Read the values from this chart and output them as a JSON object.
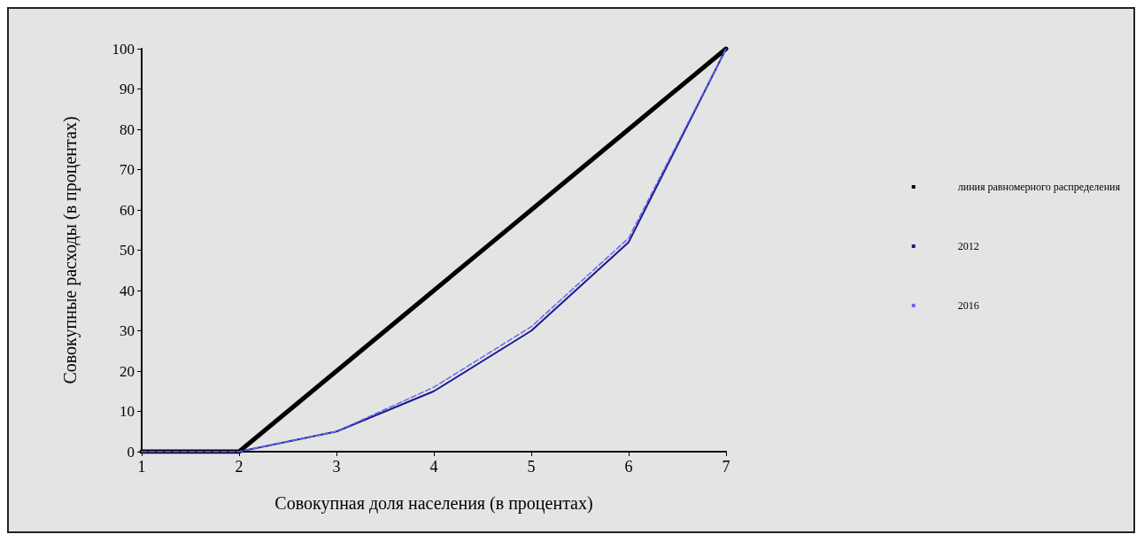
{
  "chart_data": {
    "type": "line",
    "xlabel": "Совокупная доля населения (в процентах)",
    "ylabel": "Совокупные расходы (в процентах)",
    "categories": [
      "1",
      "2",
      "3",
      "4",
      "5",
      "6",
      "7"
    ],
    "series": [
      {
        "name": "линия равномерного распределения",
        "color": "#000000",
        "values": [
          0,
          0,
          20,
          40,
          60,
          80,
          100
        ]
      },
      {
        "name": "2012",
        "color": "#1a1a8c",
        "values": [
          0,
          0,
          5,
          15,
          30,
          52,
          100
        ]
      },
      {
        "name": "2016",
        "color": "#6666ee",
        "line_style": "dashed",
        "values": [
          0,
          0,
          5,
          16,
          31,
          53,
          100
        ]
      }
    ],
    "ylim": [
      0,
      100
    ],
    "yticks": [
      0,
      10,
      20,
      30,
      40,
      50,
      60,
      70,
      80,
      90,
      100
    ],
    "grid": false,
    "legend": "right",
    "marker": "none"
  }
}
